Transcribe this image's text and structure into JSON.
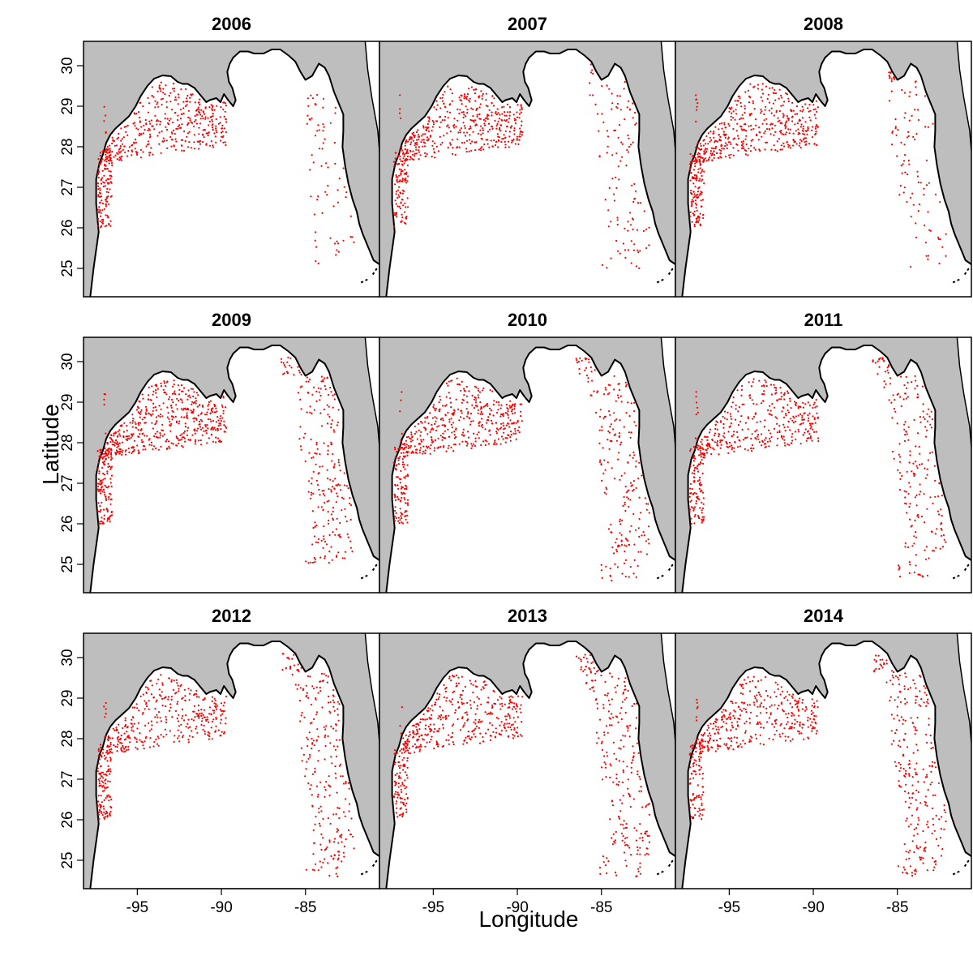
{
  "figure": {
    "xlabel": "Longitude",
    "ylabel": "Latitude"
  },
  "panels": [
    {
      "title": "2006",
      "west_count": 520,
      "west_lat_max": 29.6,
      "east_count": 70,
      "east_lon_min": -84.9,
      "east_lon_max": -82.4,
      "east_lat_min": 25.1,
      "east_lat_max": 29.3
    },
    {
      "title": "2007",
      "west_count": 540,
      "west_lat_max": 29.5,
      "east_count": 120,
      "east_lon_min": -85.7,
      "east_lon_max": -82.2,
      "east_lat_min": 25.0,
      "east_lat_max": 30.3
    },
    {
      "title": "2008",
      "west_count": 560,
      "west_lat_max": 29.6,
      "east_count": 110,
      "east_lon_min": -85.5,
      "east_lon_max": -82.6,
      "east_lat_min": 24.9,
      "east_lat_max": 30.3
    },
    {
      "title": "2009",
      "west_count": 620,
      "west_lat_max": 29.7,
      "east_count": 240,
      "east_lon_min": -86.5,
      "east_lon_max": -82.0,
      "east_lat_min": 25.0,
      "east_lat_max": 30.4
    },
    {
      "title": "2010",
      "west_count": 520,
      "west_lat_max": 29.6,
      "east_count": 230,
      "east_lon_min": -86.5,
      "east_lon_max": -82.0,
      "east_lat_min": 24.6,
      "east_lat_max": 30.4
    },
    {
      "title": "2011",
      "west_count": 470,
      "west_lat_max": 29.6,
      "east_count": 220,
      "east_lon_min": -86.5,
      "east_lon_max": -82.0,
      "east_lat_min": 24.6,
      "east_lat_max": 30.4
    },
    {
      "title": "2012",
      "west_count": 470,
      "west_lat_max": 29.6,
      "east_count": 260,
      "east_lon_min": -86.5,
      "east_lon_max": -82.0,
      "east_lat_min": 24.6,
      "east_lat_max": 30.4
    },
    {
      "title": "2013",
      "west_count": 470,
      "west_lat_max": 29.6,
      "east_count": 260,
      "east_lon_min": -86.5,
      "east_lon_max": -82.0,
      "east_lat_min": 24.6,
      "east_lat_max": 30.4
    },
    {
      "title": "2014",
      "west_count": 450,
      "west_lat_max": 29.6,
      "east_count": 280,
      "east_lon_min": -86.5,
      "east_lon_max": -82.0,
      "east_lat_min": 24.6,
      "east_lat_max": 30.4
    }
  ],
  "x_ticks": [
    {
      "value": -95,
      "label": "-95"
    },
    {
      "value": -90,
      "label": "-90"
    },
    {
      "value": -85,
      "label": "-85"
    }
  ],
  "y_ticks": [
    {
      "value": 25,
      "label": "25"
    },
    {
      "value": 26,
      "label": "26"
    },
    {
      "value": 27,
      "label": "27"
    },
    {
      "value": 28,
      "label": "28"
    },
    {
      "value": 29,
      "label": "29"
    },
    {
      "value": 30,
      "label": "30"
    }
  ],
  "map_extent": {
    "lon_min": -98.2,
    "lon_max": -80.6,
    "lat_min": 24.3,
    "lat_max": 30.6
  },
  "colors": {
    "land": "#bebebe",
    "water": "#ffffff",
    "coastline": "#000000",
    "points": "#ff0000",
    "frame": "#000000"
  },
  "coastline": [
    [
      -97.8,
      24.3
    ],
    [
      -97.6,
      25.0
    ],
    [
      -97.3,
      25.9
    ],
    [
      -97.45,
      26.6
    ],
    [
      -97.45,
      27.2
    ],
    [
      -97.25,
      27.6
    ],
    [
      -97.05,
      27.8
    ],
    [
      -96.85,
      28.1
    ],
    [
      -96.6,
      28.3
    ],
    [
      -96.3,
      28.45
    ],
    [
      -95.9,
      28.6
    ],
    [
      -95.5,
      28.75
    ],
    [
      -95.1,
      29.0
    ],
    [
      -94.8,
      29.25
    ],
    [
      -94.4,
      29.5
    ],
    [
      -94.0,
      29.68
    ],
    [
      -93.5,
      29.76
    ],
    [
      -93.0,
      29.74
    ],
    [
      -92.6,
      29.6
    ],
    [
      -92.3,
      29.55
    ],
    [
      -92.0,
      29.55
    ],
    [
      -91.6,
      29.45
    ],
    [
      -91.2,
      29.25
    ],
    [
      -90.9,
      29.1
    ],
    [
      -90.7,
      29.15
    ],
    [
      -90.3,
      29.2
    ],
    [
      -90.05,
      29.1
    ],
    [
      -89.85,
      29.3
    ],
    [
      -89.6,
      29.15
    ],
    [
      -89.3,
      29.0
    ],
    [
      -89.15,
      29.15
    ],
    [
      -89.35,
      29.45
    ],
    [
      -89.55,
      29.6
    ],
    [
      -89.65,
      29.85
    ],
    [
      -89.5,
      30.05
    ],
    [
      -89.3,
      30.2
    ],
    [
      -88.9,
      30.35
    ],
    [
      -88.4,
      30.35
    ],
    [
      -88.05,
      30.3
    ],
    [
      -87.8,
      30.3
    ],
    [
      -87.5,
      30.3
    ],
    [
      -87.0,
      30.4
    ],
    [
      -86.5,
      30.4
    ],
    [
      -86.0,
      30.25
    ],
    [
      -85.6,
      30.1
    ],
    [
      -85.3,
      29.85
    ],
    [
      -85.0,
      29.65
    ],
    [
      -84.6,
      29.75
    ],
    [
      -84.2,
      30.05
    ],
    [
      -83.85,
      29.95
    ],
    [
      -83.6,
      29.75
    ],
    [
      -83.3,
      29.35
    ],
    [
      -83.0,
      29.05
    ],
    [
      -82.75,
      28.8
    ],
    [
      -82.75,
      28.4
    ],
    [
      -82.8,
      28.0
    ],
    [
      -82.65,
      27.55
    ],
    [
      -82.45,
      27.1
    ],
    [
      -82.2,
      26.7
    ],
    [
      -81.95,
      26.4
    ],
    [
      -81.8,
      26.1
    ],
    [
      -81.6,
      25.85
    ],
    [
      -81.2,
      25.45
    ],
    [
      -80.95,
      25.2
    ],
    [
      -80.6,
      25.1
    ]
  ],
  "atlantic_coast": [
    [
      -81.45,
      30.6
    ],
    [
      -81.3,
      29.9
    ],
    [
      -81.05,
      29.2
    ],
    [
      -80.7,
      28.4
    ],
    [
      -80.6,
      27.9
    ]
  ]
}
